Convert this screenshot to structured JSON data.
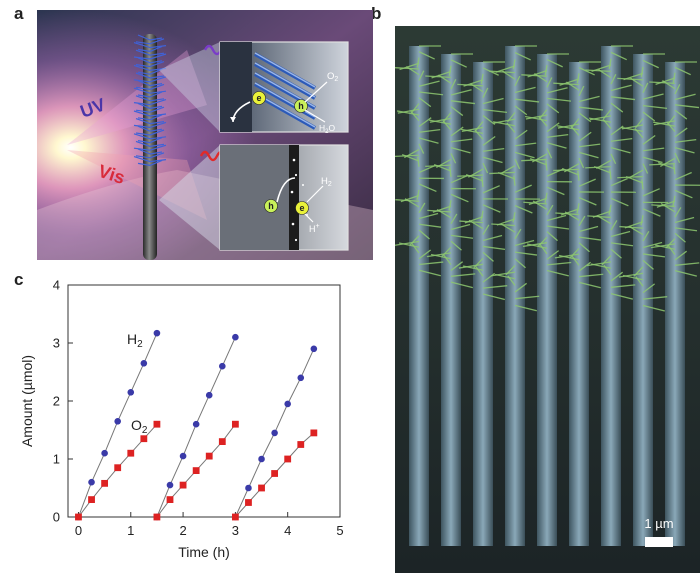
{
  "figure": {
    "panel_a": {
      "letter": "a",
      "uv_label": "UV",
      "vis_label": "Vis",
      "inset_top": {
        "electron": "e",
        "hole": "h",
        "o2": "O",
        "o2_sub": "2",
        "h2o_h": "H",
        "h2o_sub": "2",
        "h2o_o": "O"
      },
      "inset_bottom": {
        "hole": "h",
        "electron": "e",
        "h2": "H",
        "h2_sub": "2",
        "hplus": "H",
        "hplus_sup": "+"
      }
    },
    "panel_b": {
      "letter": "b",
      "scale_label": "1 µm"
    },
    "panel_c": {
      "letter": "c"
    }
  },
  "chart_data": {
    "type": "scatter",
    "xlabel": "Time (h)",
    "ylabel": "Amount (µmol)",
    "xlim": [
      -0.2,
      5.0
    ],
    "ylim": [
      0,
      4
    ],
    "xticks": [
      "0",
      "1",
      "2",
      "3",
      "4",
      "5"
    ],
    "yticks": [
      "0",
      "1",
      "2",
      "3",
      "4"
    ],
    "grid": false,
    "series": [
      {
        "name": "H",
        "name_sub": "2",
        "color": "#3a3aa8",
        "marker": "circle",
        "x": [
          0,
          0.25,
          0.5,
          0.75,
          1.0,
          1.25,
          1.5,
          1.5,
          1.75,
          2.0,
          2.25,
          2.5,
          2.75,
          3.0,
          3.0,
          3.25,
          3.5,
          3.75,
          4.0,
          4.25,
          4.5
        ],
        "y": [
          0,
          0.6,
          1.1,
          1.65,
          2.15,
          2.65,
          3.17,
          0,
          0.55,
          1.05,
          1.6,
          2.1,
          2.6,
          3.1,
          0,
          0.5,
          1.0,
          1.45,
          1.95,
          2.4,
          2.9
        ]
      },
      {
        "name": "O",
        "name_sub": "2",
        "color": "#dd2222",
        "marker": "square",
        "x": [
          0,
          0.25,
          0.5,
          0.75,
          1.0,
          1.25,
          1.5,
          1.5,
          1.75,
          2.0,
          2.25,
          2.5,
          2.75,
          3.0,
          3.0,
          3.25,
          3.5,
          3.75,
          4.0,
          4.25,
          4.5
        ],
        "y": [
          0,
          0.3,
          0.58,
          0.85,
          1.1,
          1.35,
          1.6,
          0,
          0.3,
          0.55,
          0.8,
          1.05,
          1.3,
          1.6,
          0,
          0.25,
          0.5,
          0.75,
          1.0,
          1.25,
          1.45
        ]
      }
    ]
  }
}
